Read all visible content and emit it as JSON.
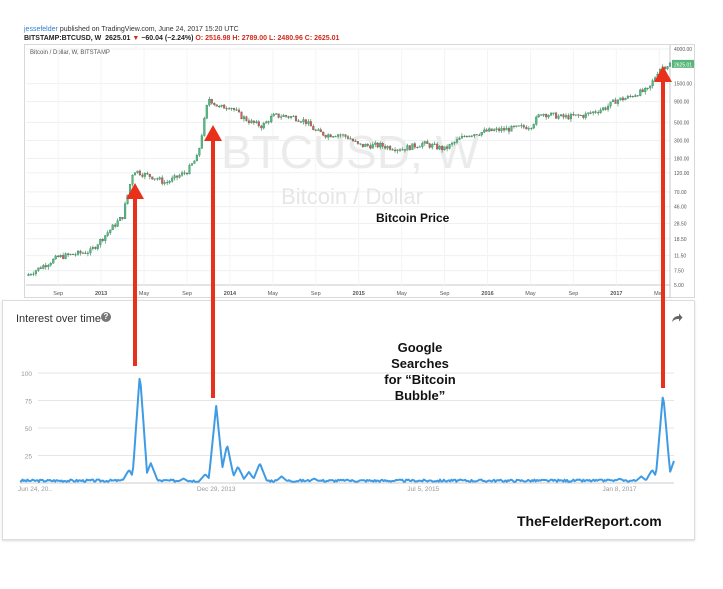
{
  "header": {
    "user": "jessefelder",
    "published": "published on TradingView.com, June 24, 2017 15:20 UTC",
    "quote_symbol": "BITSTAMP:BTCUSD, W",
    "quote_last": "2625.01",
    "quote_change": "−60.04 (−2.24%)",
    "quote_ohlc_o": "O: 2516.98",
    "quote_ohlc_h": "H: 2789.00",
    "quote_ohlc_l": "L: 2480.96",
    "quote_ohlc_c": "C: 2625.01"
  },
  "colors": {
    "candle_up": "#53b987",
    "candle_down": "#eb4d5c",
    "candle_dark": "#2e7d4e",
    "trend_line": "#3f9be4",
    "arrow": "#e8301a",
    "price_tag": "#59b67a"
  },
  "tv_chart": {
    "symbol_label": "Bitcoin / Dollar, W, BITSTAMP",
    "watermark_main": "BTCUSD, W",
    "watermark_sub": "Bitcoin / Dollar",
    "annotation": "Bitcoin Price",
    "price_tag": "2625.01"
  },
  "chart_data": [
    {
      "type": "line",
      "title": "Bitcoin / Dollar, W, BITSTAMP",
      "scale": "log",
      "y_ticks": [
        "4000.00",
        "2625.01",
        "1500.00",
        "900.00",
        "500.00",
        "300.00",
        "180.00",
        "120.00",
        "70.00",
        "46.00",
        "28.50",
        "18.50",
        "11.50",
        "7.50",
        "5.00"
      ],
      "x_ticks": [
        "Sep",
        "2013",
        "May",
        "Sep",
        "2014",
        "May",
        "Sep",
        "2015",
        "May",
        "Sep",
        "2016",
        "May",
        "Sep",
        "2017",
        "May"
      ],
      "x_dates": [
        "2012-06",
        "2012-09",
        "2012-12",
        "2013-03",
        "2013-04",
        "2013-05",
        "2013-06",
        "2013-07",
        "2013-08",
        "2013-09",
        "2013-10",
        "2013-11",
        "2013-12",
        "2014-01",
        "2014-02",
        "2014-03",
        "2014-04",
        "2014-05",
        "2014-06",
        "2014-07",
        "2014-08",
        "2014-09",
        "2014-10",
        "2014-11",
        "2014-12",
        "2015-01",
        "2015-03",
        "2015-05",
        "2015-07",
        "2015-09",
        "2015-11",
        "2016-01",
        "2016-03",
        "2016-05",
        "2016-06",
        "2016-08",
        "2016-10",
        "2016-12",
        "2017-01",
        "2017-02",
        "2017-03",
        "2017-04",
        "2017-05",
        "2017-06"
      ],
      "close": [
        6.5,
        11,
        13,
        35,
        130,
        115,
        105,
        90,
        105,
        125,
        190,
        1000,
        760,
        800,
        600,
        500,
        450,
        600,
        600,
        580,
        520,
        390,
        350,
        360,
        330,
        260,
        260,
        235,
        275,
        235,
        350,
        390,
        415,
        450,
        650,
        580,
        610,
        760,
        940,
        1000,
        1150,
        1250,
        2300,
        2625
      ]
    },
    {
      "type": "line",
      "title": "Interest over time",
      "series": [
        {
          "name": "Google Searches for “Bitcoin Bubble”"
        }
      ],
      "ylim": [
        0,
        100
      ],
      "y_ticks": [
        "100",
        "75",
        "50",
        "25"
      ],
      "x_ticks": [
        "Jun 24, 20..",
        "Dec 29, 2013",
        "Jul 5, 2015",
        "Jan 8, 2017"
      ],
      "x_dates": [
        "2012-06",
        "2012-09",
        "2012-12",
        "2013-03",
        "2013-04",
        "2013-05",
        "2013-06",
        "2013-09",
        "2013-11",
        "2013-12",
        "2014-01",
        "2014-02",
        "2014-03",
        "2014-04",
        "2014-06",
        "2014-09",
        "2014-12",
        "2015-06",
        "2015-12",
        "2016-06",
        "2016-12",
        "2017-01",
        "2017-03",
        "2017-04",
        "2017-05",
        "2017-06"
      ],
      "values": [
        0,
        1,
        1,
        2,
        12,
        100,
        18,
        4,
        8,
        70,
        35,
        15,
        10,
        18,
        6,
        4,
        3,
        2,
        2,
        2,
        3,
        4,
        6,
        12,
        82,
        20
      ]
    }
  ],
  "trends": {
    "title": "Interest over time",
    "help_icon": "help-icon",
    "share_icon": "share-icon",
    "annotation_lines": [
      "Google",
      "Searches",
      "for “Bitcoin",
      "Bubble”"
    ]
  },
  "footer": {
    "watermark": "TheFelderReport.com"
  }
}
